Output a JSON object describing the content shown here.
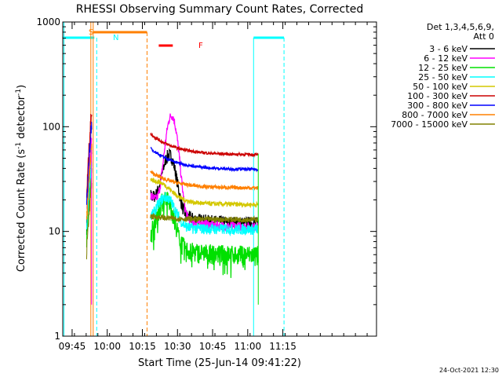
{
  "chart_data": {
    "type": "line",
    "title": "RHESSI Observing Summary Count Rates, Corrected",
    "xlabel": "Start Time (25-Jun-14 09:41:22)",
    "ylabel_main": "Corrected Count Rate (s",
    "ylabel_sup1": "-1",
    "ylabel_mid": " detector",
    "ylabel_sup2": "-1",
    "ylabel_end": ")",
    "y_scale": "log",
    "ylim": [
      1,
      1000
    ],
    "y_ticks": [
      {
        "value": 1,
        "label": "1"
      },
      {
        "value": 10,
        "label": "10"
      },
      {
        "value": 100,
        "label": "100"
      },
      {
        "value": 1000,
        "label": "1000"
      }
    ],
    "xlim_min": [
      -4,
      130
    ],
    "x_ticks": [
      {
        "value": 0,
        "label": "09:45"
      },
      {
        "value": 15,
        "label": "10:00"
      },
      {
        "value": 30,
        "label": "10:15"
      },
      {
        "value": 45,
        "label": "10:30"
      },
      {
        "value": 60,
        "label": "10:45"
      },
      {
        "value": 75,
        "label": "11:00"
      },
      {
        "value": 90,
        "label": "11:15"
      }
    ],
    "legend_header": [
      "Det 1,3,4,5,6,9,",
      "Att 0"
    ],
    "legend_placement": "right",
    "series": [
      {
        "name": "3 - 6 keV",
        "color": "#000000"
      },
      {
        "name": "6 - 12 keV",
        "color": "#ff00ff"
      },
      {
        "name": "12 - 25 keV",
        "color": "#00e000"
      },
      {
        "name": "25 - 50 keV",
        "color": "#00ffff"
      },
      {
        "name": "50 - 100 keV",
        "color": "#d4c800"
      },
      {
        "name": "100 - 300 keV",
        "color": "#cc0000"
      },
      {
        "name": "300 - 800 keV",
        "color": "#0000ff"
      },
      {
        "name": "800 - 7000 keV",
        "color": "#ff8000"
      },
      {
        "name": "7000 - 15000 keV",
        "color": "#808000"
      }
    ],
    "annotations": [
      {
        "label": "S",
        "color": "#ff8000"
      },
      {
        "label": "N",
        "color": "#00ffff"
      },
      {
        "label": "F",
        "color": "#ff0000"
      }
    ]
  },
  "footer_timestamp": "24-Oct-2021 12:30"
}
